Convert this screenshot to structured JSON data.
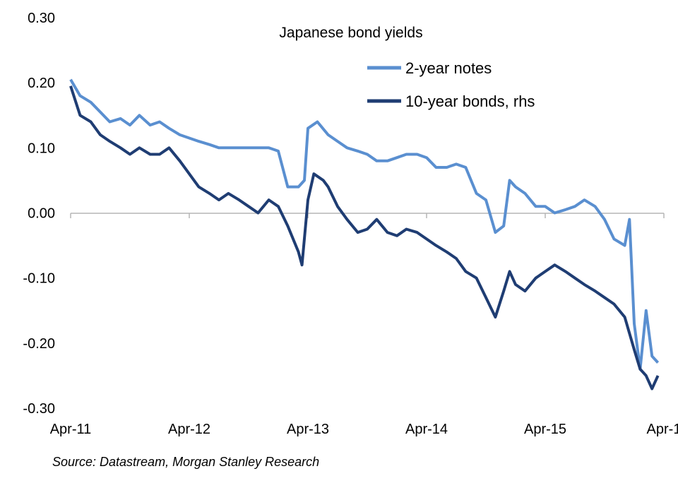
{
  "chart_data": {
    "type": "line",
    "title": "Japanese bond yields",
    "source": "Source: Datastream,  Morgan Stanley Research",
    "x_tick_labels": [
      "Apr-11",
      "Apr-12",
      "Apr-13",
      "Apr-14",
      "Apr-15",
      "Apr-1"
    ],
    "y_tick_labels": [
      "0.30",
      "0.20",
      "0.10",
      "0.00",
      "-0.10",
      "-0.20",
      "-0.30"
    ],
    "ylim": [
      -0.3,
      0.3
    ],
    "xlim": [
      2011.25,
      2016.25
    ],
    "grid": false,
    "legend_position": "top-right",
    "series": [
      {
        "name": "2-year notes",
        "axis": "left",
        "color": "#5a8fd0",
        "points": [
          [
            2011.25,
            0.205
          ],
          [
            2011.33,
            0.18
          ],
          [
            2011.42,
            0.17
          ],
          [
            2011.5,
            0.155
          ],
          [
            2011.58,
            0.14
          ],
          [
            2011.67,
            0.145
          ],
          [
            2011.75,
            0.135
          ],
          [
            2011.83,
            0.15
          ],
          [
            2011.92,
            0.135
          ],
          [
            2012.0,
            0.14
          ],
          [
            2012.08,
            0.13
          ],
          [
            2012.17,
            0.12
          ],
          [
            2012.25,
            0.115
          ],
          [
            2012.33,
            0.11
          ],
          [
            2012.42,
            0.105
          ],
          [
            2012.5,
            0.1
          ],
          [
            2012.58,
            0.1
          ],
          [
            2012.67,
            0.1
          ],
          [
            2012.75,
            0.1
          ],
          [
            2012.83,
            0.1
          ],
          [
            2012.92,
            0.1
          ],
          [
            2013.0,
            0.095
          ],
          [
            2013.08,
            0.04
          ],
          [
            2013.17,
            0.04
          ],
          [
            2013.22,
            0.05
          ],
          [
            2013.25,
            0.13
          ],
          [
            2013.33,
            0.14
          ],
          [
            2013.42,
            0.12
          ],
          [
            2013.5,
            0.11
          ],
          [
            2013.58,
            0.1
          ],
          [
            2013.67,
            0.095
          ],
          [
            2013.75,
            0.09
          ],
          [
            2013.83,
            0.08
          ],
          [
            2013.92,
            0.08
          ],
          [
            2014.0,
            0.085
          ],
          [
            2014.08,
            0.09
          ],
          [
            2014.17,
            0.09
          ],
          [
            2014.25,
            0.085
          ],
          [
            2014.33,
            0.07
          ],
          [
            2014.42,
            0.07
          ],
          [
            2014.5,
            0.075
          ],
          [
            2014.58,
            0.07
          ],
          [
            2014.67,
            0.03
          ],
          [
            2014.75,
            0.02
          ],
          [
            2014.83,
            -0.03
          ],
          [
            2014.9,
            -0.02
          ],
          [
            2014.95,
            0.05
          ],
          [
            2015.0,
            0.04
          ],
          [
            2015.08,
            0.03
          ],
          [
            2015.17,
            0.01
          ],
          [
            2015.25,
            0.01
          ],
          [
            2015.33,
            0.0
          ],
          [
            2015.42,
            0.005
          ],
          [
            2015.5,
            0.01
          ],
          [
            2015.58,
            0.02
          ],
          [
            2015.67,
            0.01
          ],
          [
            2015.75,
            -0.01
          ],
          [
            2015.83,
            -0.04
          ],
          [
            2015.92,
            -0.05
          ],
          [
            2015.96,
            -0.01
          ],
          [
            2016.0,
            -0.17
          ],
          [
            2016.05,
            -0.24
          ],
          [
            2016.1,
            -0.15
          ],
          [
            2016.15,
            -0.22
          ],
          [
            2016.2,
            -0.23
          ]
        ]
      },
      {
        "name": "10-year bonds, rhs",
        "axis": "right",
        "color": "#1f3d73",
        "points": [
          [
            2011.25,
            0.195
          ],
          [
            2011.33,
            0.15
          ],
          [
            2011.42,
            0.14
          ],
          [
            2011.5,
            0.12
          ],
          [
            2011.58,
            0.11
          ],
          [
            2011.67,
            0.1
          ],
          [
            2011.75,
            0.09
          ],
          [
            2011.83,
            0.1
          ],
          [
            2011.92,
            0.09
          ],
          [
            2012.0,
            0.09
          ],
          [
            2012.08,
            0.1
          ],
          [
            2012.17,
            0.08
          ],
          [
            2012.25,
            0.06
          ],
          [
            2012.33,
            0.04
          ],
          [
            2012.42,
            0.03
          ],
          [
            2012.5,
            0.02
          ],
          [
            2012.58,
            0.03
          ],
          [
            2012.67,
            0.02
          ],
          [
            2012.75,
            0.01
          ],
          [
            2012.83,
            0.0
          ],
          [
            2012.92,
            0.02
          ],
          [
            2013.0,
            0.01
          ],
          [
            2013.08,
            -0.02
          ],
          [
            2013.17,
            -0.06
          ],
          [
            2013.2,
            -0.08
          ],
          [
            2013.25,
            0.02
          ],
          [
            2013.3,
            0.06
          ],
          [
            2013.38,
            0.05
          ],
          [
            2013.42,
            0.04
          ],
          [
            2013.5,
            0.01
          ],
          [
            2013.58,
            -0.01
          ],
          [
            2013.67,
            -0.03
          ],
          [
            2013.75,
            -0.025
          ],
          [
            2013.83,
            -0.01
          ],
          [
            2013.92,
            -0.03
          ],
          [
            2014.0,
            -0.035
          ],
          [
            2014.08,
            -0.025
          ],
          [
            2014.17,
            -0.03
          ],
          [
            2014.25,
            -0.04
          ],
          [
            2014.33,
            -0.05
          ],
          [
            2014.42,
            -0.06
          ],
          [
            2014.5,
            -0.07
          ],
          [
            2014.58,
            -0.09
          ],
          [
            2014.67,
            -0.1
          ],
          [
            2014.75,
            -0.13
          ],
          [
            2014.83,
            -0.16
          ],
          [
            2014.9,
            -0.12
          ],
          [
            2014.95,
            -0.09
          ],
          [
            2015.0,
            -0.11
          ],
          [
            2015.08,
            -0.12
          ],
          [
            2015.17,
            -0.1
          ],
          [
            2015.25,
            -0.09
          ],
          [
            2015.33,
            -0.08
          ],
          [
            2015.42,
            -0.09
          ],
          [
            2015.5,
            -0.1
          ],
          [
            2015.58,
            -0.11
          ],
          [
            2015.67,
            -0.12
          ],
          [
            2015.75,
            -0.13
          ],
          [
            2015.83,
            -0.14
          ],
          [
            2015.92,
            -0.16
          ],
          [
            2016.0,
            -0.21
          ],
          [
            2016.05,
            -0.24
          ],
          [
            2016.1,
            -0.25
          ],
          [
            2016.15,
            -0.27
          ],
          [
            2016.2,
            -0.25
          ]
        ]
      }
    ]
  }
}
